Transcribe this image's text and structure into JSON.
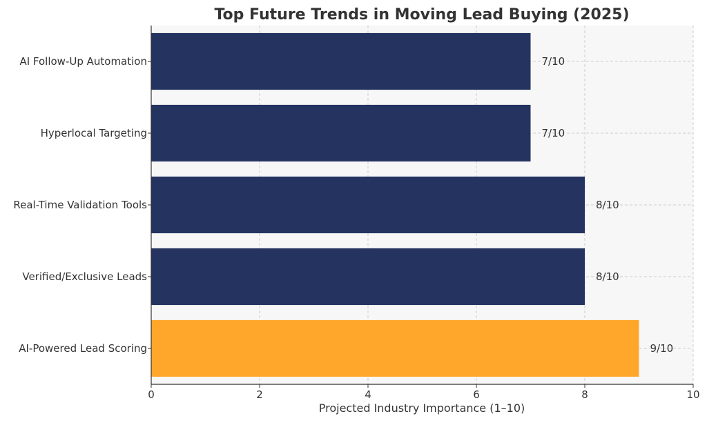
{
  "chart_data": {
    "type": "bar",
    "orientation": "horizontal",
    "title": "Top Future Trends in Moving Lead Buying (2025)",
    "xlabel": "Projected Industry Importance (1–10)",
    "ylabel": "",
    "xlim": [
      0,
      10
    ],
    "xticks": [
      0,
      2,
      4,
      6,
      8,
      10
    ],
    "grid": true,
    "categories": [
      "AI Follow-Up Automation",
      "Hyperlocal Targeting",
      "Real-Time Validation Tools",
      "Verified/Exclusive Leads",
      "AI-Powered Lead Scoring"
    ],
    "values": [
      7,
      7,
      8,
      8,
      9
    ],
    "value_labels": [
      "7/10",
      "7/10",
      "8/10",
      "8/10",
      "9/10"
    ],
    "bar_colors": [
      "#243360",
      "#243360",
      "#243360",
      "#243360",
      "#ffa72a"
    ]
  }
}
